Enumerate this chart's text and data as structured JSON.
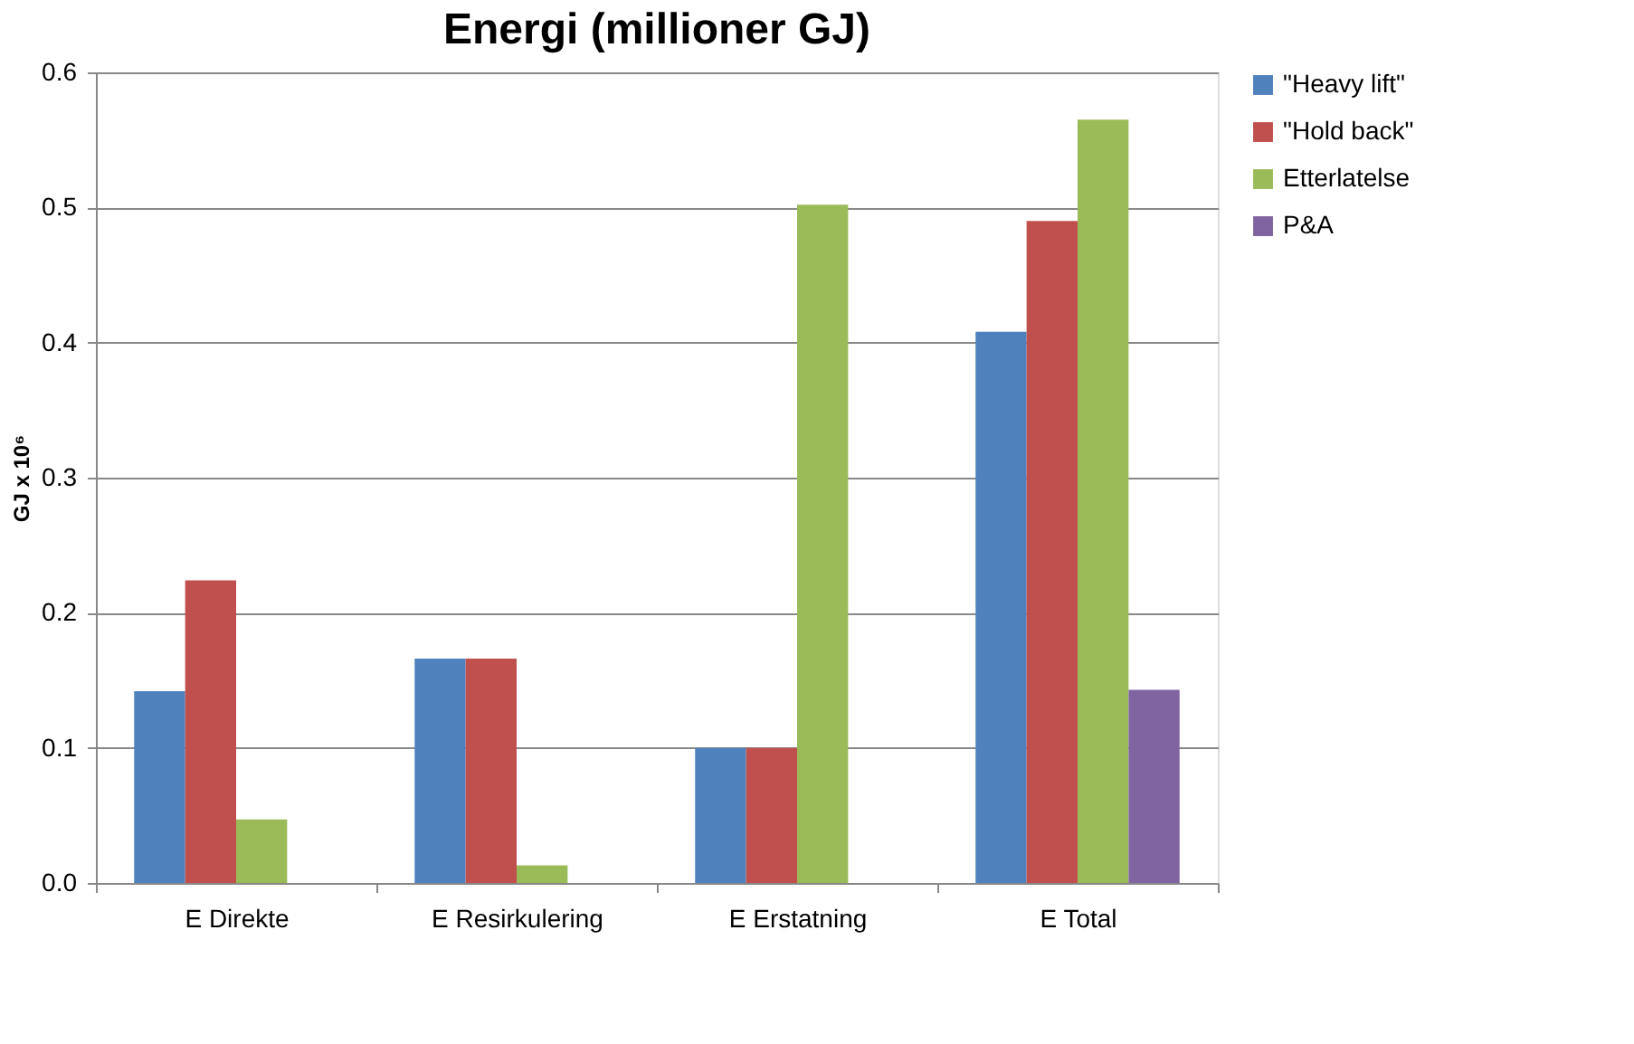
{
  "chart_data": {
    "type": "bar",
    "title": "Energi (millioner GJ)",
    "ylabel": "GJ x 10⁶",
    "categories": [
      "E Direkte",
      "E Resirkulering",
      "E Erstatning",
      "E Total"
    ],
    "series": [
      {
        "name": "\"Heavy lift\"",
        "color": "#4f81bd",
        "values": [
          0.142,
          0.166,
          0.1,
          0.408
        ]
      },
      {
        "name": "\"Hold back\"",
        "color": "#c0504d",
        "values": [
          0.224,
          0.166,
          0.1,
          0.49
        ]
      },
      {
        "name": "Etterlatelse",
        "color": "#9bbb59",
        "values": [
          0.047,
          0.013,
          0.502,
          0.565
        ]
      },
      {
        "name": "P&A",
        "color": "#8064a2",
        "values": [
          null,
          null,
          null,
          0.143
        ]
      }
    ],
    "ylim": [
      0,
      0.6
    ],
    "yticks": [
      {
        "value": 0,
        "label": "0.0"
      },
      0.1,
      0.2,
      0.3,
      0.4,
      0.5,
      0.6
    ],
    "grid": "y",
    "legend": "right"
  }
}
